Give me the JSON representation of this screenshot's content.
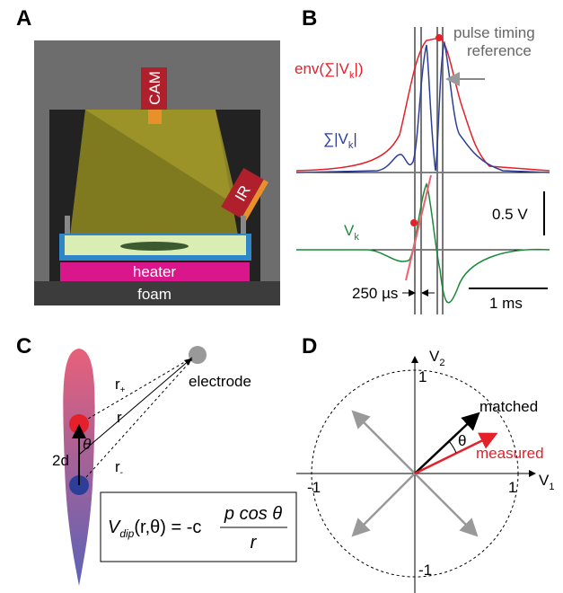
{
  "panels": {
    "a": "A",
    "b": "B",
    "c": "C",
    "d": "D"
  },
  "setup": {
    "camera": "CAM",
    "infrared": "IR",
    "heater": "heater",
    "foam": "foam"
  },
  "recording": {
    "reference": [
      "pulse timing",
      "reference"
    ],
    "envelope": [
      "env(∑|V",
      "k",
      "|)"
    ],
    "sum": [
      "∑|V",
      "k",
      "|"
    ],
    "signal": [
      "V",
      "k"
    ],
    "voltage_scale": "0.5 V",
    "delay": "250 µs",
    "time_scale": "1 ms"
  },
  "dipole": {
    "electrode": "electrode",
    "r_plus": [
      "r",
      "+"
    ],
    "r_vec": "r",
    "r_minus": [
      "r",
      "-"
    ],
    "theta": "θ",
    "separation": "2d",
    "formula": {
      "lhs": "V",
      "sub": "dip",
      "args": "(r,θ) = -c",
      "numerator": "p cos θ",
      "denominator": "r"
    }
  },
  "vector": {
    "y_axis": [
      "V",
      "2"
    ],
    "x_axis": [
      "V",
      "1"
    ],
    "top": "1",
    "bottom": "-1",
    "right": "1",
    "left": "-1",
    "matched": "matched",
    "measured": "measured",
    "theta": "θ"
  }
}
